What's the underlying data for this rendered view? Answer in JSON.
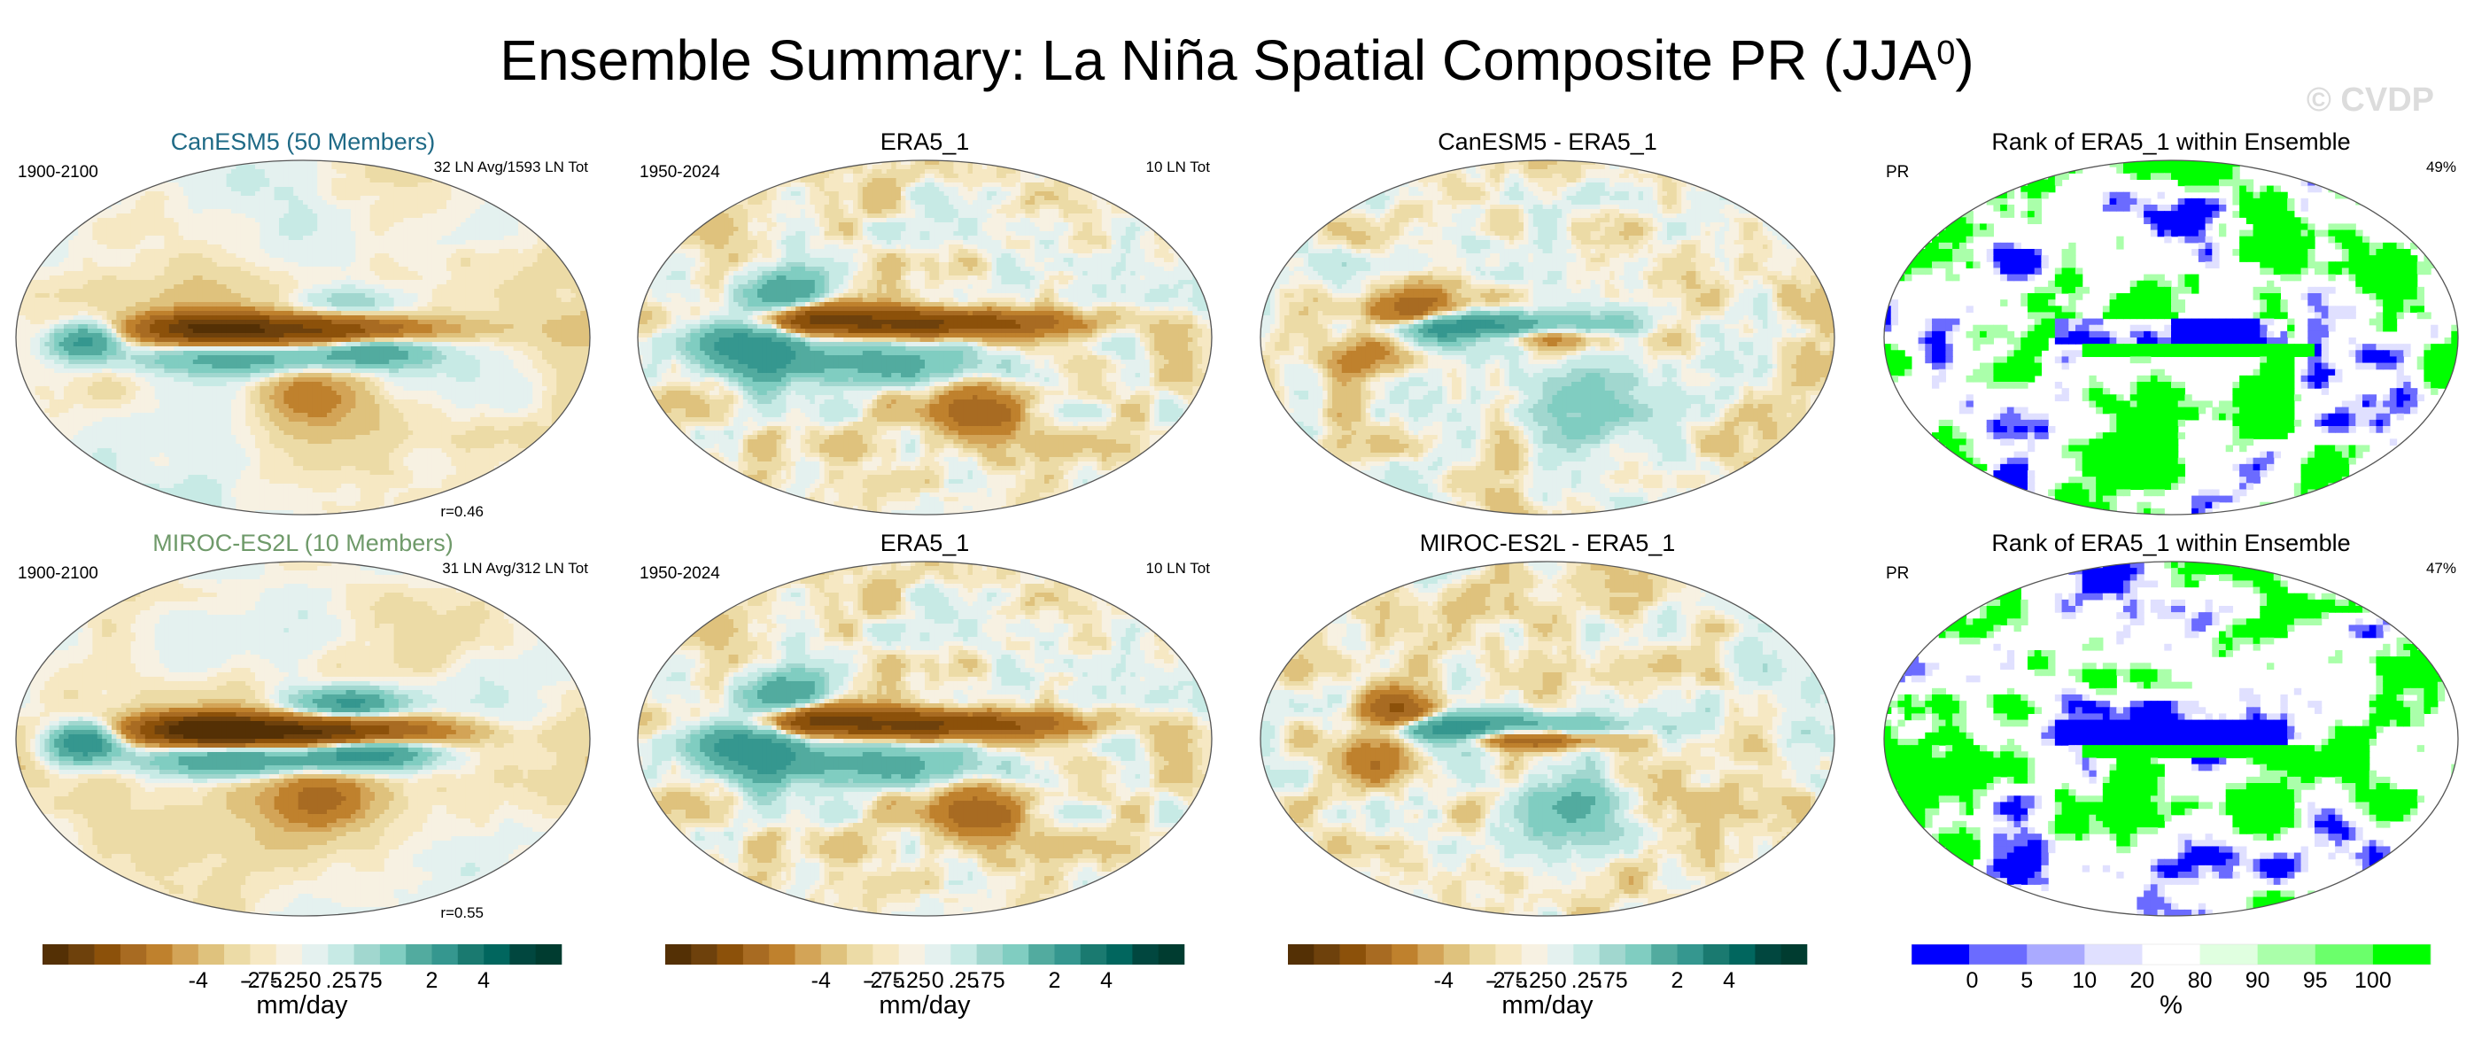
{
  "title_main": "Ensemble Summary: La Niña Spatial Composite PR (JJA",
  "title_sup": "0",
  "title_close": ")",
  "watermark": "© CVDP",
  "colors": {
    "canesm5_title": "#1f6a86",
    "miroc_title": "#6f9a6a",
    "ocean_bg": "#f6eedd",
    "coast": "#333333"
  },
  "diverging_colors": [
    "#543005",
    "#6e410c",
    "#8c510a",
    "#a86b22",
    "#bf812d",
    "#d3a457",
    "#dfc27d",
    "#ecdba6",
    "#f6e8c3",
    "#f7f1e2",
    "#e4f1ef",
    "#c7eae5",
    "#a1d7cf",
    "#80cdc1",
    "#52ab9f",
    "#35978f",
    "#1a7a70",
    "#01665e",
    "#01473f",
    "#003c30"
  ],
  "rank_colors": [
    "#0000ff",
    "#6b6bff",
    "#aaaaff",
    "#e0e0ff",
    "#ffffff",
    "#e0ffe0",
    "#aaffaa",
    "#6bff6b",
    "#00ff00"
  ],
  "panels": [
    {
      "title": "CanESM5 (50 Members)",
      "title_color": "#1f6a86",
      "left": "1900-2100",
      "right": "32 LN Avg/1593 LN Tot",
      "bottom": "r=0.46",
      "kind": "model"
    },
    {
      "title": "ERA5_1",
      "title_color": "#000000",
      "left": "1950-2024",
      "right": "10 LN Tot",
      "bottom": "",
      "kind": "obs"
    },
    {
      "title": "CanESM5 - ERA5_1",
      "title_color": "#000000",
      "left": "",
      "right": "",
      "bottom": "",
      "kind": "diff"
    },
    {
      "title": "Rank of ERA5_1 within Ensemble",
      "title_color": "#000000",
      "left": "PR",
      "right": "49%",
      "bottom": "",
      "kind": "rank"
    },
    {
      "title": "MIROC-ES2L (10 Members)",
      "title_color": "#6f9a6a",
      "left": "1900-2100",
      "right": "31 LN Avg/312 LN Tot",
      "bottom": "r=0.55",
      "kind": "model2"
    },
    {
      "title": "ERA5_1",
      "title_color": "#000000",
      "left": "1950-2024",
      "right": "10 LN Tot",
      "bottom": "",
      "kind": "obs"
    },
    {
      "title": "MIROC-ES2L - ERA5_1",
      "title_color": "#000000",
      "left": "",
      "right": "",
      "bottom": "",
      "kind": "diff2"
    },
    {
      "title": "Rank of ERA5_1 within Ensemble",
      "title_color": "#000000",
      "left": "PR",
      "right": "47%",
      "bottom": "",
      "kind": "rank2"
    }
  ],
  "colorbars": [
    {
      "type": "diverging",
      "ticks": [
        "-4",
        "-2",
        "-.75",
        "-.25",
        "0",
        ".25",
        ".75",
        "2",
        "4"
      ],
      "label": "mm/day"
    },
    {
      "type": "diverging",
      "ticks": [
        "-4",
        "-2",
        "-.75",
        "-.25",
        "0",
        ".25",
        ".75",
        "2",
        "4"
      ],
      "label": "mm/day"
    },
    {
      "type": "diverging",
      "ticks": [
        "-4",
        "-2",
        "-.75",
        "-.25",
        "0",
        ".25",
        ".75",
        "2",
        "4"
      ],
      "label": "mm/day"
    },
    {
      "type": "rank",
      "ticks": [
        "0",
        "5",
        "10",
        "20",
        "80",
        "90",
        "95",
        "100"
      ],
      "label": "%"
    }
  ],
  "chart_data": [
    {
      "type": "heatmap",
      "title": "CanESM5 (50 Members)",
      "subtitle_left": "1900-2100",
      "subtitle_right": "32 LN Avg/1593 LN Tot",
      "annotation": "r=0.46",
      "units": "mm/day",
      "contour_levels": [
        -4,
        -2,
        -0.75,
        -0.25,
        0,
        0.25,
        0.75,
        2,
        4
      ]
    },
    {
      "type": "heatmap",
      "title": "ERA5_1",
      "subtitle_left": "1950-2024",
      "subtitle_right": "10 LN Tot",
      "units": "mm/day",
      "contour_levels": [
        -4,
        -2,
        -0.75,
        -0.25,
        0,
        0.25,
        0.75,
        2,
        4
      ]
    },
    {
      "type": "heatmap",
      "title": "CanESM5 - ERA5_1",
      "units": "mm/day",
      "contour_levels": [
        -4,
        -2,
        -0.75,
        -0.25,
        0,
        0.25,
        0.75,
        2,
        4
      ]
    },
    {
      "type": "heatmap",
      "title": "Rank of ERA5_1 within Ensemble",
      "subtitle_left": "PR",
      "subtitle_right": "49%",
      "units": "%",
      "rank_levels": [
        0,
        5,
        10,
        20,
        80,
        90,
        95,
        100
      ]
    },
    {
      "type": "heatmap",
      "title": "MIROC-ES2L (10 Members)",
      "subtitle_left": "1900-2100",
      "subtitle_right": "31 LN Avg/312 LN Tot",
      "annotation": "r=0.55",
      "units": "mm/day",
      "contour_levels": [
        -4,
        -2,
        -0.75,
        -0.25,
        0,
        0.25,
        0.75,
        2,
        4
      ]
    },
    {
      "type": "heatmap",
      "title": "ERA5_1",
      "subtitle_left": "1950-2024",
      "subtitle_right": "10 LN Tot",
      "units": "mm/day",
      "contour_levels": [
        -4,
        -2,
        -0.75,
        -0.25,
        0,
        0.25,
        0.75,
        2,
        4
      ]
    },
    {
      "type": "heatmap",
      "title": "MIROC-ES2L - ERA5_1",
      "units": "mm/day",
      "contour_levels": [
        -4,
        -2,
        -0.75,
        -0.25,
        0,
        0.25,
        0.75,
        2,
        4
      ]
    },
    {
      "type": "heatmap",
      "title": "Rank of ERA5_1 within Ensemble",
      "subtitle_left": "PR",
      "subtitle_right": "47%",
      "units": "%",
      "rank_levels": [
        0,
        5,
        10,
        20,
        80,
        90,
        95,
        100
      ]
    }
  ]
}
